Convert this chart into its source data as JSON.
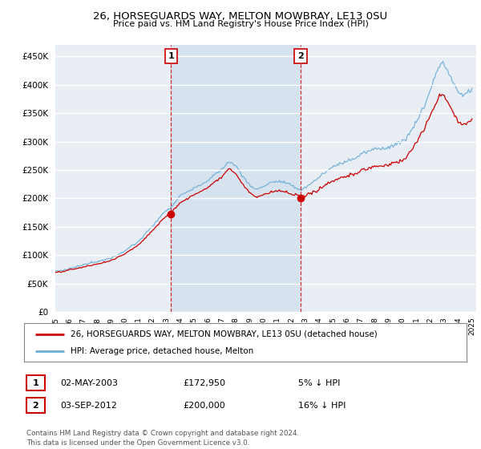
{
  "title": "26, HORSEGUARDS WAY, MELTON MOWBRAY, LE13 0SU",
  "subtitle": "Price paid vs. HM Land Registry's House Price Index (HPI)",
  "legend_line1": "26, HORSEGUARDS WAY, MELTON MOWBRAY, LE13 0SU (detached house)",
  "legend_line2": "HPI: Average price, detached house, Melton",
  "annotation1_date": "02-MAY-2003",
  "annotation1_price": "£172,950",
  "annotation1_pct": "5% ↓ HPI",
  "annotation2_date": "03-SEP-2012",
  "annotation2_price": "£200,000",
  "annotation2_pct": "16% ↓ HPI",
  "footer": "Contains HM Land Registry data © Crown copyright and database right 2024.\nThis data is licensed under the Open Government Licence v3.0.",
  "hpi_color": "#6BAED6",
  "price_color": "#CC0000",
  "vline_color": "#CC0000",
  "highlight_color": "#DDEEFF",
  "background_color": "#E8EEF4",
  "ylim": [
    0,
    470000
  ],
  "yticks": [
    0,
    50000,
    100000,
    150000,
    200000,
    250000,
    300000,
    350000,
    400000,
    450000
  ]
}
